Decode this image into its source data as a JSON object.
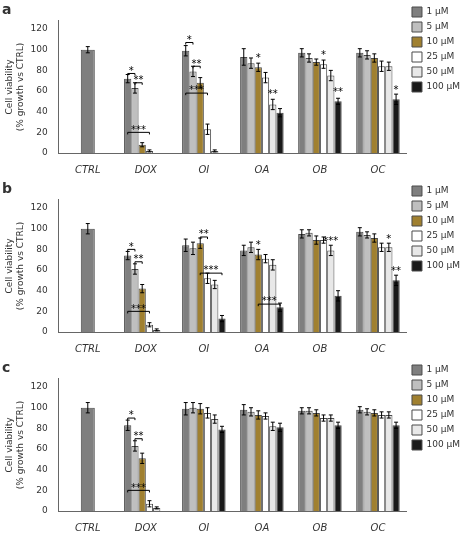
{
  "chart_data": [
    {
      "type": "bar",
      "title": "a",
      "categories": [
        "CTRL",
        "DOX",
        "OI",
        "OA",
        "OB",
        "OC"
      ],
      "ylabel": "Cell viability\n(% growth vs CTRL)",
      "ylim": [
        0,
        128
      ],
      "yticks": [
        0,
        20,
        40,
        60,
        80,
        100,
        120
      ],
      "grid": false,
      "legend": "right",
      "color": "#4a4a4a",
      "series": [
        {
          "name": "1 μM",
          "color": "#7f7f7f",
          "values": [
            100,
            72,
            99,
            93,
            97,
            97
          ],
          "errors": [
            3,
            4,
            5,
            8,
            4,
            4
          ]
        },
        {
          "name": "5 μM",
          "color": "#bfbfbf",
          "values": [
            null,
            63,
            79,
            87,
            92,
            95
          ],
          "errors": [
            null,
            5,
            5,
            5,
            4,
            4
          ]
        },
        {
          "name": "10 μM",
          "color": "#a08030",
          "values": [
            null,
            8,
            68,
            83,
            88,
            92
          ],
          "errors": [
            null,
            2,
            5,
            4,
            3,
            4
          ]
        },
        {
          "name": "25 μM",
          "color": "#ffffff",
          "values": [
            null,
            2,
            23,
            73,
            86,
            84
          ],
          "errors": [
            null,
            1,
            5,
            5,
            4,
            5
          ]
        },
        {
          "name": "50 μM",
          "color": "#e8e8e8",
          "values": [
            null,
            0,
            2,
            47,
            75,
            84
          ],
          "errors": [
            null,
            0,
            1,
            5,
            5,
            4
          ]
        },
        {
          "name": "100 μM",
          "color": "#1a1a1a",
          "values": [
            null,
            0,
            0,
            39,
            50,
            52
          ],
          "errors": [
            null,
            0,
            0,
            4,
            3,
            5
          ]
        }
      ],
      "annotations": [
        {
          "text": "*",
          "group": "DOX",
          "series": [
            "1 μM",
            "5 μM"
          ],
          "y": 75
        },
        {
          "text": "**",
          "group": "DOX",
          "series": [
            "5 μM",
            "10 μM"
          ],
          "y": 66
        },
        {
          "text": "***",
          "group": "DOX",
          "series": [
            "1 μM",
            "25 μM"
          ],
          "y": 18
        },
        {
          "text": "*",
          "group": "OI",
          "series": [
            "1 μM",
            "5 μM"
          ],
          "y": 105
        },
        {
          "text": "**",
          "group": "OI",
          "series": [
            "5 μM",
            "10 μM"
          ],
          "y": 82
        },
        {
          "text": "***",
          "group": "OI",
          "series": [
            "1 μM",
            "25 μM"
          ],
          "y": 56
        },
        {
          "text": "*",
          "group": "OA",
          "series": [
            "10 μM"
          ],
          "y": 90
        },
        {
          "text": "**",
          "group": "OA",
          "series": [
            "50 μM"
          ],
          "y": 55
        },
        {
          "text": "*",
          "group": "OB",
          "series": [
            "25 μM"
          ],
          "y": 93
        },
        {
          "text": "**",
          "group": "OB",
          "series": [
            "100 μM"
          ],
          "y": 57
        },
        {
          "text": "*",
          "group": "OC",
          "series": [
            "100 μM"
          ],
          "y": 59
        }
      ]
    },
    {
      "type": "bar",
      "title": "b",
      "categories": [
        "CTRL",
        "DOX",
        "OI",
        "OA",
        "OB",
        "OC"
      ],
      "ylabel": "Cell viability\n(% growth vs CTRL)",
      "ylim": [
        0,
        128
      ],
      "yticks": [
        0,
        20,
        40,
        60,
        80,
        100,
        120
      ],
      "grid": false,
      "legend": "right",
      "color": "#4a4a4a",
      "series": [
        {
          "name": "1 μM",
          "color": "#7f7f7f",
          "values": [
            100,
            74,
            84,
            79,
            95,
            97
          ],
          "errors": [
            5,
            4,
            6,
            5,
            4,
            4
          ]
        },
        {
          "name": "5 μM",
          "color": "#bfbfbf",
          "values": [
            null,
            61,
            81,
            82,
            96,
            94
          ],
          "errors": [
            null,
            5,
            6,
            5,
            3,
            3
          ]
        },
        {
          "name": "10 μM",
          "color": "#a08030",
          "values": [
            null,
            42,
            86,
            75,
            89,
            91
          ],
          "errors": [
            null,
            4,
            5,
            5,
            4,
            4
          ]
        },
        {
          "name": "25 μM",
          "color": "#ffffff",
          "values": [
            null,
            7,
            52,
            71,
            89,
            82
          ],
          "errors": [
            null,
            2,
            5,
            4,
            3,
            4
          ]
        },
        {
          "name": "50 μM",
          "color": "#e8e8e8",
          "values": [
            null,
            2,
            46,
            65,
            79,
            82
          ],
          "errors": [
            null,
            1,
            4,
            5,
            5,
            4
          ]
        },
        {
          "name": "100 μM",
          "color": "#1a1a1a",
          "values": [
            null,
            0,
            13,
            24,
            35,
            50
          ],
          "errors": [
            null,
            0,
            3,
            4,
            5,
            5
          ]
        }
      ],
      "annotations": [
        {
          "text": "*",
          "group": "DOX",
          "series": [
            "1 μM",
            "5 μM"
          ],
          "y": 78
        },
        {
          "text": "**",
          "group": "DOX",
          "series": [
            "5 μM",
            "10 μM"
          ],
          "y": 66
        },
        {
          "text": "***",
          "group": "DOX",
          "series": [
            "1 μM",
            "25 μM"
          ],
          "y": 18
        },
        {
          "text": "**",
          "group": "OI",
          "series": [
            "10 μM",
            "25 μM"
          ],
          "y": 90
        },
        {
          "text": "***",
          "group": "OI",
          "series": [
            "10 μM",
            "100 μM"
          ],
          "y": 55
        },
        {
          "text": "*",
          "group": "OA",
          "series": [
            "10 μM"
          ],
          "y": 82
        },
        {
          "text": "***",
          "group": "OA",
          "series": [
            "10 μM",
            "100 μM"
          ],
          "y": 25
        },
        {
          "text": "***",
          "group": "OB",
          "series": [
            "50 μM"
          ],
          "y": 86
        },
        {
          "text": "*",
          "group": "OC",
          "series": [
            "50 μM"
          ],
          "y": 88
        },
        {
          "text": "**",
          "group": "OC",
          "series": [
            "100 μM"
          ],
          "y": 57
        }
      ]
    },
    {
      "type": "bar",
      "title": "c",
      "categories": [
        "CTRL",
        "DOX",
        "OI",
        "OA",
        "OB",
        "OC"
      ],
      "ylabel": "Cell viability\n(% growth vs CTRL)",
      "ylim": [
        0,
        128
      ],
      "yticks": [
        0,
        20,
        40,
        60,
        80,
        100,
        120
      ],
      "grid": false,
      "legend": "right",
      "color": "#4a4a4a",
      "series": [
        {
          "name": "1 μM",
          "color": "#7f7f7f",
          "values": [
            100,
            83,
            99,
            98,
            97,
            98
          ],
          "errors": [
            5,
            5,
            6,
            5,
            3,
            3
          ]
        },
        {
          "name": "5 μM",
          "color": "#bfbfbf",
          "values": [
            null,
            63,
            100,
            96,
            97,
            96
          ],
          "errors": [
            null,
            5,
            5,
            4,
            3,
            3
          ]
        },
        {
          "name": "10 μM",
          "color": "#a08030",
          "values": [
            null,
            51,
            99,
            93,
            95,
            95
          ],
          "errors": [
            null,
            5,
            5,
            4,
            3,
            3
          ]
        },
        {
          "name": "25 μM",
          "color": "#ffffff",
          "values": [
            null,
            7,
            95,
            92,
            90,
            93
          ],
          "errors": [
            null,
            3,
            5,
            3,
            3,
            3
          ]
        },
        {
          "name": "50 μM",
          "color": "#e8e8e8",
          "values": [
            null,
            3,
            89,
            82,
            90,
            93
          ],
          "errors": [
            null,
            1,
            4,
            4,
            3,
            3
          ]
        },
        {
          "name": "100 μM",
          "color": "#1a1a1a",
          "values": [
            null,
            0,
            79,
            81,
            83,
            83
          ],
          "errors": [
            null,
            0,
            3,
            4,
            3,
            3
          ]
        }
      ],
      "annotations": [
        {
          "text": "*",
          "group": "DOX",
          "series": [
            "1 μM",
            "5 μM"
          ],
          "y": 88
        },
        {
          "text": "**",
          "group": "DOX",
          "series": [
            "5 μM",
            "10 μM"
          ],
          "y": 68
        },
        {
          "text": "***",
          "group": "DOX",
          "series": [
            "1 μM",
            "25 μM"
          ],
          "y": 18
        }
      ]
    }
  ]
}
